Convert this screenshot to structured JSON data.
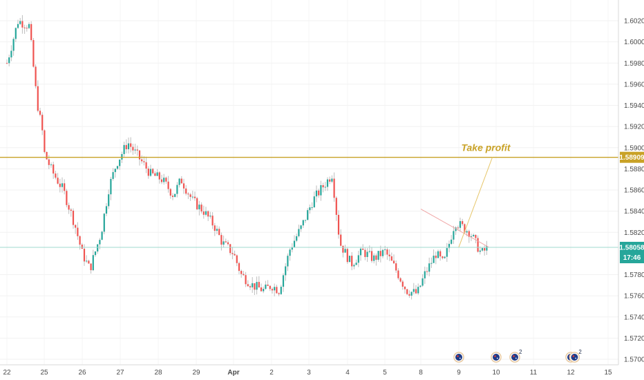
{
  "chart_data": {
    "type": "candlestick",
    "title": "",
    "xlabel": "",
    "ylabel": "",
    "ylim": [
      1.5696,
      1.6036
    ],
    "y_ticks": [
      "1.60200",
      "1.60000",
      "1.59800",
      "1.59600",
      "1.59400",
      "1.59200",
      "1.59000",
      "1.58800",
      "1.58600",
      "1.58400",
      "1.58200",
      "1.57800",
      "1.57600",
      "1.57400",
      "1.57200",
      "1.57000"
    ],
    "x_labels": [
      "22",
      "25",
      "26",
      "27",
      "28",
      "29",
      "Apr",
      "2",
      "3",
      "4",
      "5",
      "8",
      "9",
      "10",
      "11",
      "12",
      "15"
    ],
    "price_lines": {
      "take_profit": {
        "value": "1.58909",
        "color": "#c9a227"
      },
      "last_price": {
        "value": "1.58058",
        "color": "#26a69a",
        "countdown": "17:46"
      }
    },
    "annotations": [
      {
        "text": "Take profit",
        "color": "#c9a227"
      }
    ],
    "projection": [
      [
        "9",
        1.5806
      ],
      [
        "9.9",
        1.5891
      ]
    ],
    "wedge_line": [
      [
        "8",
        1.5842
      ],
      [
        "9.8",
        1.5806
      ]
    ],
    "candle_colors": {
      "up": "#26a69a",
      "down": "#ef5350",
      "wick": "#bdbdbd"
    },
    "path": [
      [
        "22.0",
        1.598
      ],
      [
        "22.3",
        1.602
      ],
      [
        "22.6",
        1.6015
      ],
      [
        "22.8",
        1.5945
      ],
      [
        "23.0",
        1.5905
      ],
      [
        "23.3",
        1.5955
      ],
      [
        "23.6",
        1.597
      ],
      [
        "24.0",
        1.5955
      ],
      [
        "24.3",
        1.5925
      ],
      [
        "24.6",
        1.5915
      ],
      [
        "25.0",
        1.5895
      ],
      [
        "25.2",
        1.5878
      ],
      [
        "25.5",
        1.586
      ],
      [
        "25.8",
        1.5828
      ],
      [
        "26.0",
        1.58
      ],
      [
        "26.2",
        1.5785
      ],
      [
        "26.5",
        1.582
      ],
      [
        "26.7",
        1.5862
      ],
      [
        "26.9",
        1.5885
      ],
      [
        "27.2",
        1.5905
      ],
      [
        "27.5",
        1.589
      ],
      [
        "27.8",
        1.5875
      ],
      [
        "28.1",
        1.587
      ],
      [
        "28.4",
        1.5855
      ],
      [
        "28.6",
        1.587
      ],
      [
        "28.9",
        1.585
      ],
      [
        "29.2",
        1.584
      ],
      [
        "29.5",
        1.5825
      ],
      [
        "29.7",
        1.581
      ],
      [
        "30.0",
        1.58
      ],
      [
        "30.2",
        1.578
      ],
      [
        "30.5",
        1.577
      ],
      [
        "30.8",
        1.5765
      ],
      [
        "31.0",
        1.577
      ],
      [
        "31.2",
        1.5765
      ],
      [
        "31.5",
        1.5805
      ],
      [
        "31.8",
        1.5825
      ],
      [
        "32.1",
        1.585
      ],
      [
        "32.4",
        1.5865
      ],
      [
        "32.6",
        1.5875
      ],
      [
        "32.8",
        1.581
      ],
      [
        "33.1",
        1.579
      ],
      [
        "33.4",
        1.5802
      ],
      [
        "33.7",
        1.5795
      ],
      [
        "34.0",
        1.5802
      ],
      [
        "34.3",
        1.5785
      ],
      [
        "34.6",
        1.5765
      ],
      [
        "34.9",
        1.5762
      ],
      [
        "35.1",
        1.578
      ],
      [
        "35.4",
        1.58
      ],
      [
        "35.6",
        1.579
      ],
      [
        "35.9",
        1.583
      ],
      [
        "36.1",
        1.5825
      ],
      [
        "36.3",
        1.582
      ],
      [
        "36.6",
        1.58
      ],
      [
        "36.8",
        1.5806
      ]
    ]
  },
  "timeline_events": [
    {
      "icon": "au-flag-icon",
      "x_label": "9",
      "count": ""
    },
    {
      "icon": "au-flag-icon",
      "x_label": "10",
      "count": ""
    },
    {
      "icon": "au-flag-icon",
      "x_label": "10.5",
      "count": "2"
    },
    {
      "icon": "au-flag-icon",
      "x_label": "12",
      "count": ""
    },
    {
      "icon": "au-flag-icon",
      "x_label": "12.3",
      "count": "2"
    }
  ]
}
